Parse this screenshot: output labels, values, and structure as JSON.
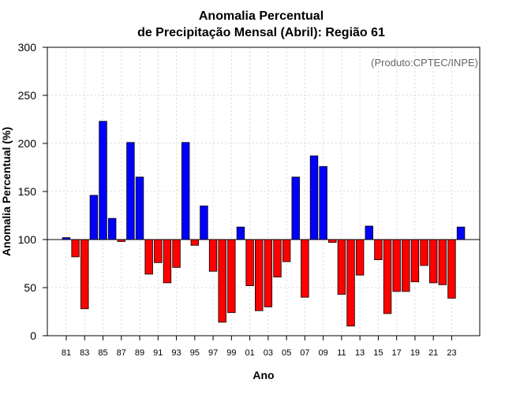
{
  "chart_data": {
    "type": "bar",
    "title": [
      "Anomalia Percentual",
      "de Precipitação Mensal (Abril): Região 61"
    ],
    "xlabel": "Ano",
    "ylabel": "Anomalia Percentual (%)",
    "credit": "(Produto:CPTEC/INPE)",
    "ylim": [
      0,
      300
    ],
    "yticks": [
      0,
      50,
      100,
      150,
      200,
      250,
      300
    ],
    "baseline": 100,
    "grid": true,
    "colors": {
      "above": "#0000ff",
      "below": "#ff0000"
    },
    "categories": [
      "81",
      "82",
      "83",
      "84",
      "85",
      "86",
      "87",
      "88",
      "89",
      "90",
      "91",
      "92",
      "93",
      "94",
      "95",
      "96",
      "97",
      "98",
      "99",
      "00",
      "01",
      "02",
      "03",
      "04",
      "05",
      "06",
      "07",
      "08",
      "09",
      "10",
      "11",
      "12",
      "13",
      "14",
      "15",
      "16",
      "17",
      "18",
      "19",
      "20",
      "21",
      "22",
      "23",
      "24"
    ],
    "tick_labels": [
      "81",
      "83",
      "85",
      "87",
      "89",
      "91",
      "93",
      "95",
      "97",
      "99",
      "01",
      "03",
      "05",
      "07",
      "09",
      "11",
      "13",
      "15",
      "17",
      "19",
      "21",
      "23"
    ],
    "values": [
      102,
      82,
      28,
      146,
      223,
      122,
      98,
      201,
      165,
      64,
      76,
      55,
      71,
      201,
      94,
      135,
      67,
      14,
      24,
      113,
      52,
      26,
      30,
      61,
      77,
      165,
      40,
      187,
      176,
      97,
      43,
      10,
      63,
      114,
      79,
      23,
      46,
      46,
      56,
      73,
      55,
      53,
      39,
      113
    ]
  }
}
